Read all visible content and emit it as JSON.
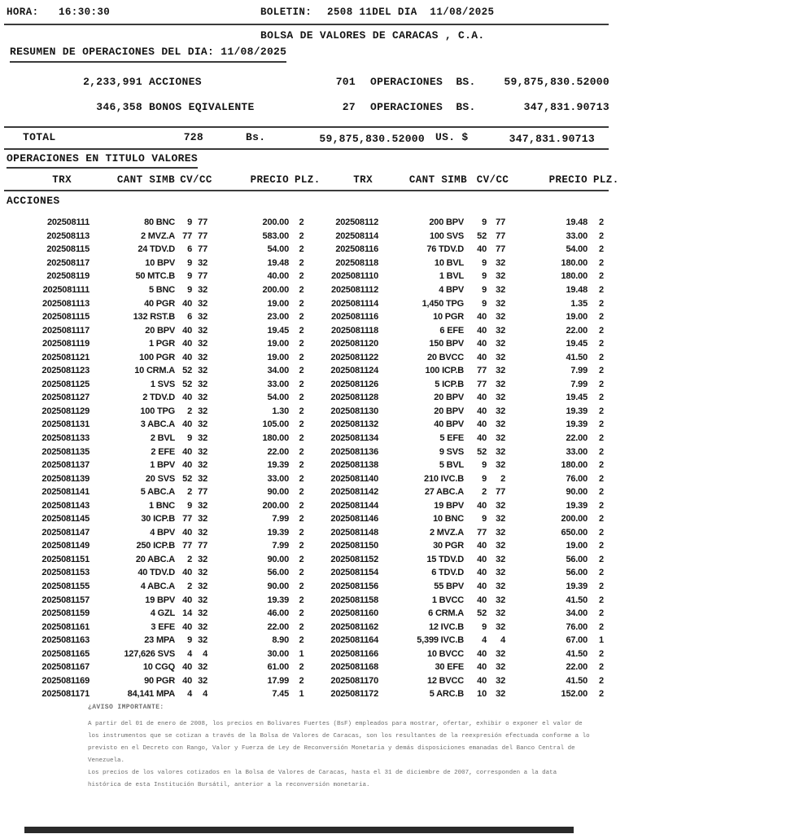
{
  "header": {
    "hora_label": "HORA:",
    "hora_value": "16:30:30",
    "boletin_label": "BOLETIN:",
    "boletin_value": "2508 11DEL DIA  11/08/2025"
  },
  "title": "BOLSA DE VALORES DE CARACAS , C.A.",
  "resumen": {
    "heading": "RESUMEN DE OPERACIONES DEL DIA: 11/08/2025",
    "rows": [
      {
        "qty": "2,233,991",
        "label": "ACCIONES",
        "ops": "701",
        "ops_label": "OPERACIONES  BS.",
        "amount": "59,875,830.52000"
      },
      {
        "qty": "346,358",
        "label": "BONOS EQIVALENTE",
        "ops": "27",
        "ops_label": "OPERACIONES  BS.",
        "amount": "347,831.90713"
      }
    ],
    "total": {
      "label": "TOTAL",
      "count": "728",
      "currency_label": "Bs.",
      "amount_bs": "59,875,830.52000",
      "usd_label": "US. $",
      "amount_usd": "347,831.90713"
    }
  },
  "operaciones": {
    "heading": "OPERACIONES EN TITULO VALORES",
    "columns": {
      "trx": "TRX",
      "cant_simb": "CANT SIMB",
      "cv_cc": "CV/CC",
      "precio": "PRECIO",
      "plz": "PLZ."
    },
    "section": "ACCIONES",
    "rows": [
      [
        "202508111",
        "80 BNC",
        "9",
        "77",
        "200.00",
        "2",
        "202508112",
        "200 BPV",
        "9",
        "77",
        "19.48",
        "2"
      ],
      [
        "202508113",
        "2 MVZ.A",
        "77",
        "77",
        "583.00",
        "2",
        "202508114",
        "100 SVS",
        "52",
        "77",
        "33.00",
        "2"
      ],
      [
        "202508115",
        "24 TDV.D",
        "6",
        "77",
        "54.00",
        "2",
        "202508116",
        "76 TDV.D",
        "40",
        "77",
        "54.00",
        "2"
      ],
      [
        "202508117",
        "10 BPV",
        "9",
        "32",
        "19.48",
        "2",
        "202508118",
        "10 BVL",
        "9",
        "32",
        "180.00",
        "2"
      ],
      [
        "202508119",
        "50 MTC.B",
        "9",
        "77",
        "40.00",
        "2",
        "2025081110",
        "1 BVL",
        "9",
        "32",
        "180.00",
        "2"
      ],
      [
        "2025081111",
        "5 BNC",
        "9",
        "32",
        "200.00",
        "2",
        "2025081112",
        "4 BPV",
        "9",
        "32",
        "19.48",
        "2"
      ],
      [
        "2025081113",
        "40 PGR",
        "40",
        "32",
        "19.00",
        "2",
        "2025081114",
        "1,450 TPG",
        "9",
        "32",
        "1.35",
        "2"
      ],
      [
        "2025081115",
        "132 RST.B",
        "6",
        "32",
        "23.00",
        "2",
        "2025081116",
        "10 PGR",
        "40",
        "32",
        "19.00",
        "2"
      ],
      [
        "2025081117",
        "20 BPV",
        "40",
        "32",
        "19.45",
        "2",
        "2025081118",
        "6 EFE",
        "40",
        "32",
        "22.00",
        "2"
      ],
      [
        "2025081119",
        "1 PGR",
        "40",
        "32",
        "19.00",
        "2",
        "2025081120",
        "150 BPV",
        "40",
        "32",
        "19.45",
        "2"
      ],
      [
        "2025081121",
        "100 PGR",
        "40",
        "32",
        "19.00",
        "2",
        "2025081122",
        "20 BVCC",
        "40",
        "32",
        "41.50",
        "2"
      ],
      [
        "2025081123",
        "10 CRM.A",
        "52",
        "32",
        "34.00",
        "2",
        "2025081124",
        "100 ICP.B",
        "77",
        "32",
        "7.99",
        "2"
      ],
      [
        "2025081125",
        "1 SVS",
        "52",
        "32",
        "33.00",
        "2",
        "2025081126",
        "5 ICP.B",
        "77",
        "32",
        "7.99",
        "2"
      ],
      [
        "2025081127",
        "2 TDV.D",
        "40",
        "32",
        "54.00",
        "2",
        "2025081128",
        "20 BPV",
        "40",
        "32",
        "19.45",
        "2"
      ],
      [
        "2025081129",
        "100 TPG",
        "2",
        "32",
        "1.30",
        "2",
        "2025081130",
        "20 BPV",
        "40",
        "32",
        "19.39",
        "2"
      ],
      [
        "2025081131",
        "3 ABC.A",
        "40",
        "32",
        "105.00",
        "2",
        "2025081132",
        "40 BPV",
        "40",
        "32",
        "19.39",
        "2"
      ],
      [
        "2025081133",
        "2 BVL",
        "9",
        "32",
        "180.00",
        "2",
        "2025081134",
        "5 EFE",
        "40",
        "32",
        "22.00",
        "2"
      ],
      [
        "2025081135",
        "2 EFE",
        "40",
        "32",
        "22.00",
        "2",
        "2025081136",
        "9 SVS",
        "52",
        "32",
        "33.00",
        "2"
      ],
      [
        "2025081137",
        "1 BPV",
        "40",
        "32",
        "19.39",
        "2",
        "2025081138",
        "5 BVL",
        "9",
        "32",
        "180.00",
        "2"
      ],
      [
        "2025081139",
        "20 SVS",
        "52",
        "32",
        "33.00",
        "2",
        "2025081140",
        "210 IVC.B",
        "9",
        "2",
        "76.00",
        "2"
      ],
      [
        "2025081141",
        "5 ABC.A",
        "2",
        "77",
        "90.00",
        "2",
        "2025081142",
        "27 ABC.A",
        "2",
        "77",
        "90.00",
        "2"
      ],
      [
        "2025081143",
        "1 BNC",
        "9",
        "32",
        "200.00",
        "2",
        "2025081144",
        "19 BPV",
        "40",
        "32",
        "19.39",
        "2"
      ],
      [
        "2025081145",
        "30 ICP.B",
        "77",
        "32",
        "7.99",
        "2",
        "2025081146",
        "10 BNC",
        "9",
        "32",
        "200.00",
        "2"
      ],
      [
        "2025081147",
        "4 BPV",
        "40",
        "32",
        "19.39",
        "2",
        "2025081148",
        "2 MVZ.A",
        "77",
        "32",
        "650.00",
        "2"
      ],
      [
        "2025081149",
        "250 ICP.B",
        "77",
        "77",
        "7.99",
        "2",
        "2025081150",
        "30 PGR",
        "40",
        "32",
        "19.00",
        "2"
      ],
      [
        "2025081151",
        "20 ABC.A",
        "2",
        "32",
        "90.00",
        "2",
        "2025081152",
        "15 TDV.D",
        "40",
        "32",
        "56.00",
        "2"
      ],
      [
        "2025081153",
        "40 TDV.D",
        "40",
        "32",
        "56.00",
        "2",
        "2025081154",
        "6 TDV.D",
        "40",
        "32",
        "56.00",
        "2"
      ],
      [
        "2025081155",
        "4 ABC.A",
        "2",
        "32",
        "90.00",
        "2",
        "2025081156",
        "55 BPV",
        "40",
        "32",
        "19.39",
        "2"
      ],
      [
        "2025081157",
        "19 BPV",
        "40",
        "32",
        "19.39",
        "2",
        "2025081158",
        "1 BVCC",
        "40",
        "32",
        "41.50",
        "2"
      ],
      [
        "2025081159",
        "4 GZL",
        "14",
        "32",
        "46.00",
        "2",
        "2025081160",
        "6 CRM.A",
        "52",
        "32",
        "34.00",
        "2"
      ],
      [
        "2025081161",
        "3 EFE",
        "40",
        "32",
        "22.00",
        "2",
        "2025081162",
        "12 IVC.B",
        "9",
        "32",
        "76.00",
        "2"
      ],
      [
        "2025081163",
        "23 MPA",
        "9",
        "32",
        "8.90",
        "2",
        "2025081164",
        "5,399 IVC.B",
        "4",
        "4",
        "67.00",
        "1"
      ],
      [
        "2025081165",
        "127,626 SVS",
        "4",
        "4",
        "30.00",
        "1",
        "2025081166",
        "10 BVCC",
        "40",
        "32",
        "41.50",
        "2"
      ],
      [
        "2025081167",
        "10 CGQ",
        "40",
        "32",
        "61.00",
        "2",
        "2025081168",
        "30 EFE",
        "40",
        "32",
        "22.00",
        "2"
      ],
      [
        "2025081169",
        "90 PGR",
        "40",
        "32",
        "17.99",
        "2",
        "2025081170",
        "12 BVCC",
        "40",
        "32",
        "41.50",
        "2"
      ],
      [
        "2025081171",
        "84,141 MPA",
        "4",
        "4",
        "7.45",
        "1",
        "2025081172",
        "5 ARC.B",
        "10",
        "32",
        "152.00",
        "2"
      ]
    ]
  },
  "aviso": {
    "heading": "¿AVISO IMPORTANTE:",
    "lines": [
      "A partir del 01 de enero de 2008, los precios en Bolívares Fuertes (BsF) empleados para mostrar, ofertar, exhibir o exponer el valor de",
      "los instrumentos que se cotizan a través de la Bolsa de Valores de Caracas, son los resultantes de la reexpresión efectuada conforme a lo",
      "previsto en el Decreto con Rango, Valor y Fuerza de Ley de Reconversión Monetaria y demás disposiciones emanadas del Banco Central de",
      "Venezuela.",
      "Los precios de los valores cotizados en la Bolsa de Valores de Caracas, hasta el 31 de diciembre de 2007, corresponden a la data",
      "histórica de esta Institución Bursátil, anterior a la reconversión monetaria."
    ]
  },
  "colors": {
    "text": "#141414",
    "rule_line": "#3a3a3a",
    "footer_text": "#6e6e6e",
    "bottom_bar": "#2a2a2a"
  }
}
